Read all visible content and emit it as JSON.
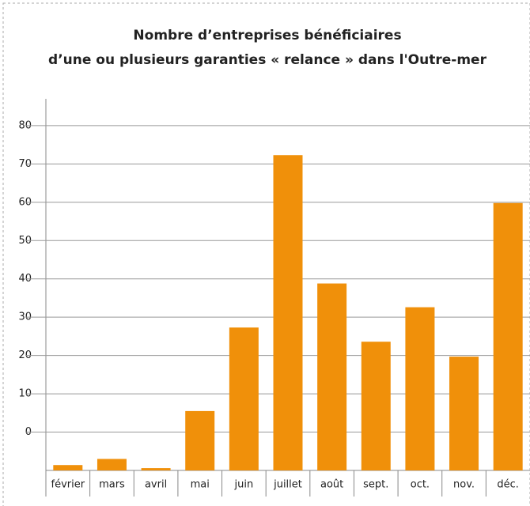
{
  "chart_data": {
    "type": "bar",
    "title": [
      "Nombre d’entreprises bénéficiaires",
      "d’une ou plusieurs garanties « relance » dans l'Outre-mer"
    ],
    "categories": [
      "février",
      "mars",
      "avril",
      "mai",
      "juin",
      "juillet",
      "août",
      "sept.",
      "oct.",
      "nov.",
      "déc."
    ],
    "values": [
      -8.6,
      -7.0,
      -9.4,
      5.5,
      27.3,
      72.3,
      38.8,
      23.6,
      32.6,
      19.7,
      59.8
    ],
    "color": "#f0900a",
    "ylim": [
      -10,
      87
    ],
    "yticks": [
      0,
      10,
      20,
      30,
      40,
      50,
      60,
      70,
      80
    ],
    "grid": true
  }
}
